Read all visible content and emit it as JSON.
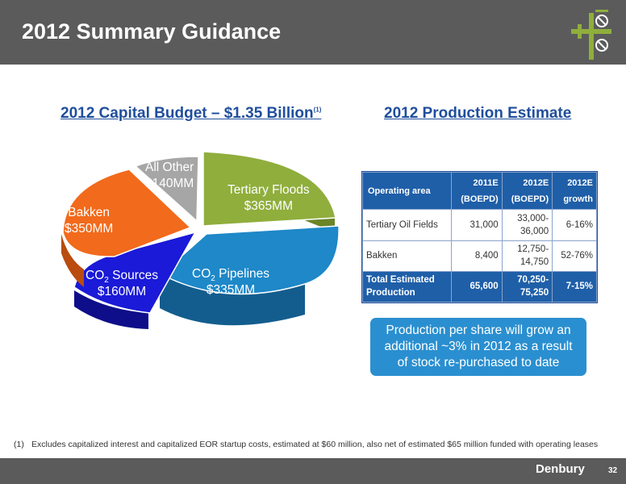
{
  "header": {
    "title": "2012 Summary Guidance"
  },
  "budget": {
    "title": "2012 Capital Budget – $1.35 Billion",
    "title_note": "(1)",
    "slices": [
      {
        "line1": "Tertiary Floods",
        "line2": "$365MM",
        "color": "#8fae3c"
      },
      {
        "line1_main": "CO",
        "line1_sub": "2",
        "line1_rest": " Pipelines",
        "line2": "$335MM",
        "color": "#1e88c8"
      },
      {
        "line1_main": "CO",
        "line1_sub": "2",
        "line1_rest": " Sources",
        "line2": "$160MM",
        "color": "#1a1ad8"
      },
      {
        "line1": "Bakken",
        "line2": "$350MM",
        "color": "#f26a1b"
      },
      {
        "line1": "All Other",
        "line2": "$140MM",
        "color": "#a6a6a6"
      }
    ]
  },
  "chart_data": {
    "type": "pie",
    "title": "2012 Capital Budget – $1.35 Billion",
    "units": "$MM",
    "labels": [
      "Tertiary Floods",
      "CO2 Pipelines",
      "CO2 Sources",
      "Bakken",
      "All Other"
    ],
    "values": [
      365,
      335,
      160,
      350,
      140
    ]
  },
  "production": {
    "title": "2012 Production Estimate",
    "headers": {
      "area": "Operating area",
      "c2011_1": "2011E",
      "c2011_2": "(BOEPD)",
      "c2012_1": "2012E",
      "c2012_2": "(BOEPD)",
      "growth_1": "2012E",
      "growth_2": "growth"
    },
    "rows": [
      {
        "area": "Tertiary Oil Fields",
        "v2011": "31,000",
        "v2012_1": "33,000-",
        "v2012_2": "36,000",
        "growth": "6-16%"
      },
      {
        "area": "Bakken",
        "v2011": "8,400",
        "v2012_1": "12,750-",
        "v2012_2": "14,750",
        "growth": "52-76%"
      }
    ],
    "total": {
      "area_1": "Total Estimated",
      "area_2": "Production",
      "v2011": "65,600",
      "v2012_1": "70,250-",
      "v2012_2": "75,250",
      "growth": "7-15%"
    }
  },
  "callout": {
    "line1": "Production per share will grow an",
    "line2": "additional ~3% in 2012 as a result",
    "line3": "of stock re-purchased to date"
  },
  "footnote": {
    "number": "(1)",
    "text": "Excludes capitalized interest and capitalized EOR startup costs, estimated at $60 million, also net of estimated $65 million funded with operating leases"
  },
  "footer": {
    "brand": "Denbury",
    "page": "32"
  }
}
